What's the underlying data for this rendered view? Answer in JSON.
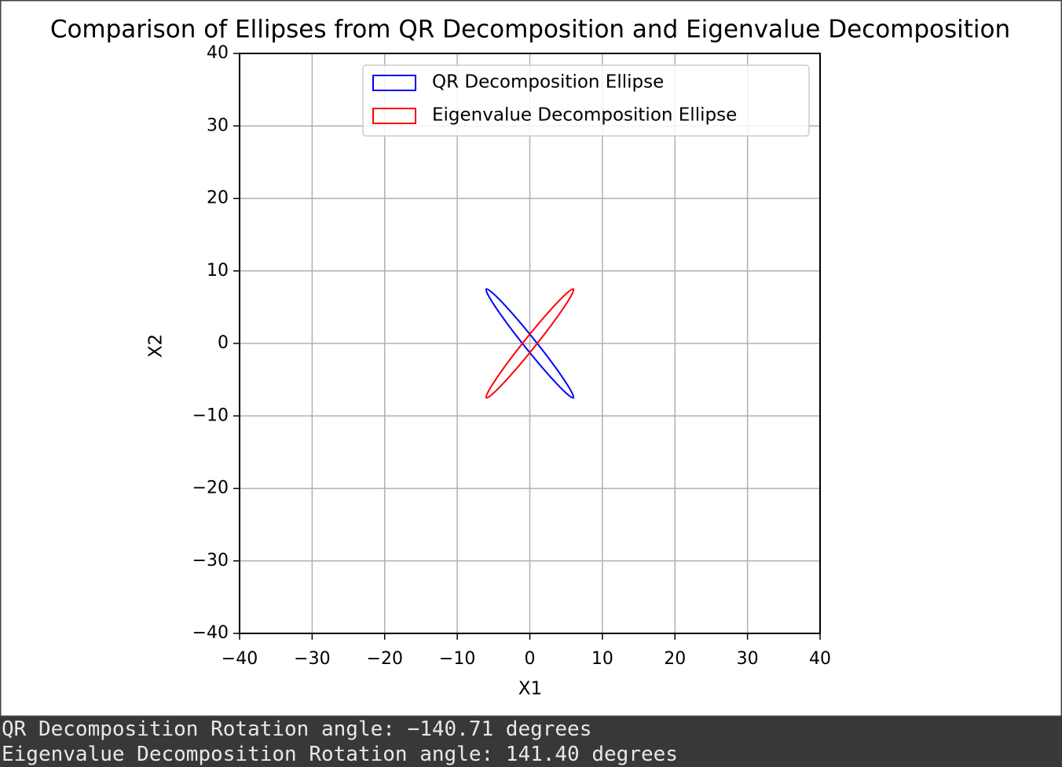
{
  "chart_data": {
    "type": "ellipse",
    "title": "Comparison of Ellipses from QR Decomposition and Eigenvalue Decomposition",
    "xlabel": "X1",
    "ylabel": "X2",
    "xlim": [
      -40,
      40
    ],
    "ylim": [
      -40,
      40
    ],
    "xticks": [
      {
        "value": -40,
        "label": "−40"
      },
      {
        "value": -30,
        "label": "−30"
      },
      {
        "value": -20,
        "label": "−20"
      },
      {
        "value": -10,
        "label": "−10"
      },
      0,
      10,
      20,
      30,
      40
    ],
    "yticks": [
      {
        "value": -40,
        "label": "−40"
      },
      {
        "value": -30,
        "label": "−30"
      },
      {
        "value": -20,
        "label": "−20"
      },
      {
        "value": -10,
        "label": "−10"
      },
      0,
      10,
      20,
      30,
      40
    ],
    "grid": true,
    "legend_loc": "upper right",
    "series": [
      {
        "name": "QR Decomposition Ellipse",
        "color": "#0000ff",
        "center": [
          0,
          0
        ],
        "width": 19.2,
        "height": 1.6,
        "angle": 128.7
      },
      {
        "name": "Eigenvalue Decomposition Ellipse",
        "color": "#ff0000",
        "center": [
          0,
          0
        ],
        "width": 19.2,
        "height": 1.6,
        "angle": 51.3
      }
    ]
  },
  "output_lines": [
    "QR Decomposition Rotation angle: −140.71 degrees",
    "Eigenvalue Decomposition Rotation angle: 141.40 degrees"
  ]
}
